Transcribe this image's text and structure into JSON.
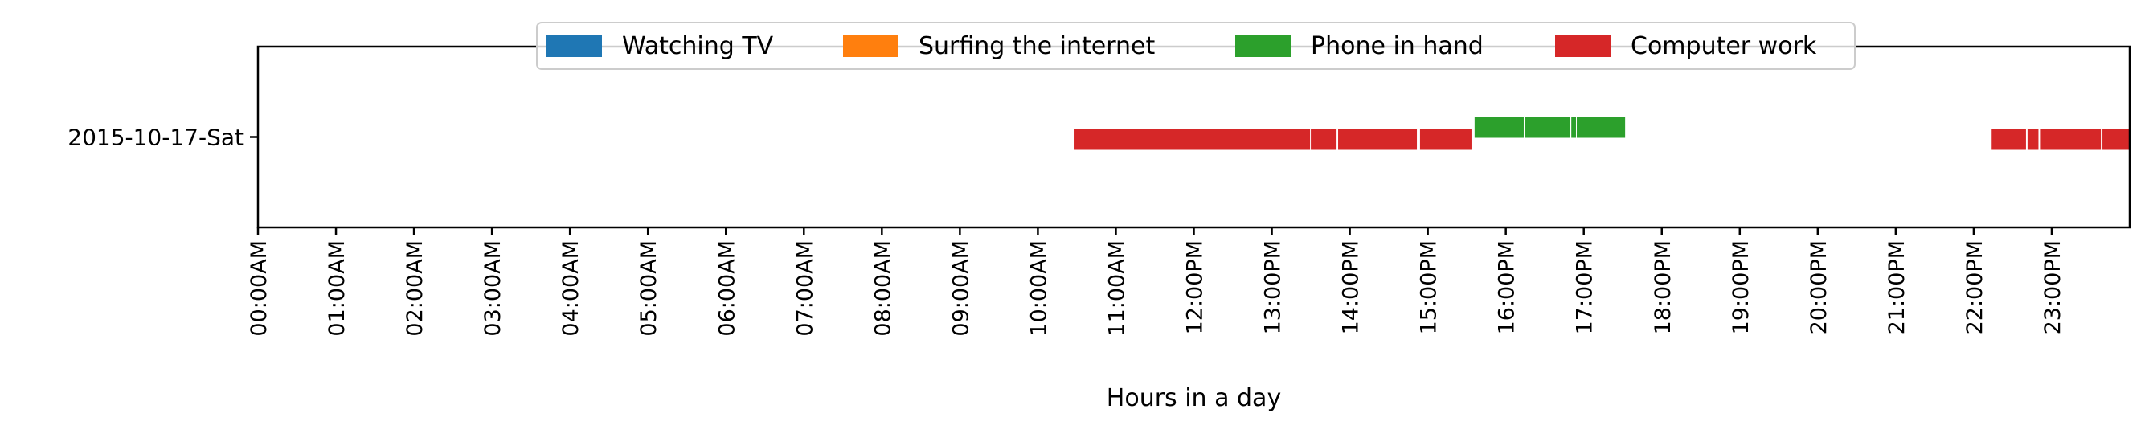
{
  "chart_data": {
    "type": "timeline",
    "xlabel": "Hours in a day",
    "xlim": [
      0,
      24
    ],
    "x_ticks": [
      {
        "value": 0,
        "label": "00:00AM"
      },
      {
        "value": 1,
        "label": "01:00AM"
      },
      {
        "value": 2,
        "label": "02:00AM"
      },
      {
        "value": 3,
        "label": "03:00AM"
      },
      {
        "value": 4,
        "label": "04:00AM"
      },
      {
        "value": 5,
        "label": "05:00AM"
      },
      {
        "value": 6,
        "label": "06:00AM"
      },
      {
        "value": 7,
        "label": "07:00AM"
      },
      {
        "value": 8,
        "label": "08:00AM"
      },
      {
        "value": 9,
        "label": "09:00AM"
      },
      {
        "value": 10,
        "label": "10:00AM"
      },
      {
        "value": 11,
        "label": "11:00AM"
      },
      {
        "value": 12,
        "label": "12:00PM"
      },
      {
        "value": 13,
        "label": "13:00PM"
      },
      {
        "value": 14,
        "label": "14:00PM"
      },
      {
        "value": 15,
        "label": "15:00PM"
      },
      {
        "value": 16,
        "label": "16:00PM"
      },
      {
        "value": 17,
        "label": "17:00PM"
      },
      {
        "value": 18,
        "label": "18:00PM"
      },
      {
        "value": 19,
        "label": "19:00PM"
      },
      {
        "value": 20,
        "label": "20:00PM"
      },
      {
        "value": 21,
        "label": "21:00PM"
      },
      {
        "value": 22,
        "label": "22:00PM"
      },
      {
        "value": 23,
        "label": "23:00PM"
      }
    ],
    "categories": [
      "2015-10-17-Sat"
    ],
    "legend_position": "top-center",
    "series": [
      {
        "name": "Watching TV",
        "color": "#1f77b4",
        "segments": []
      },
      {
        "name": "Surfing the internet",
        "color": "#ff7f0e",
        "segments": []
      },
      {
        "name": "Phone in hand",
        "color": "#2ca02c",
        "segments": [
          {
            "day": "2015-10-17-Sat",
            "start": 15.6,
            "end": 16.23
          },
          {
            "day": "2015-10-17-Sat",
            "start": 16.25,
            "end": 16.82
          },
          {
            "day": "2015-10-17-Sat",
            "start": 16.84,
            "end": 16.9
          },
          {
            "day": "2015-10-17-Sat",
            "start": 16.91,
            "end": 17.53
          }
        ]
      },
      {
        "name": "Computer work",
        "color": "#d62728",
        "segments": [
          {
            "day": "2015-10-17-Sat",
            "start": 10.47,
            "end": 13.49
          },
          {
            "day": "2015-10-17-Sat",
            "start": 13.5,
            "end": 13.83
          },
          {
            "day": "2015-10-17-Sat",
            "start": 13.85,
            "end": 14.86
          },
          {
            "day": "2015-10-17-Sat",
            "start": 14.9,
            "end": 15.56
          },
          {
            "day": "2015-10-17-Sat",
            "start": 22.23,
            "end": 22.67
          },
          {
            "day": "2015-10-17-Sat",
            "start": 22.69,
            "end": 22.83
          },
          {
            "day": "2015-10-17-Sat",
            "start": 22.85,
            "end": 23.63
          },
          {
            "day": "2015-10-17-Sat",
            "start": 23.65,
            "end": 24.0
          }
        ]
      }
    ]
  }
}
